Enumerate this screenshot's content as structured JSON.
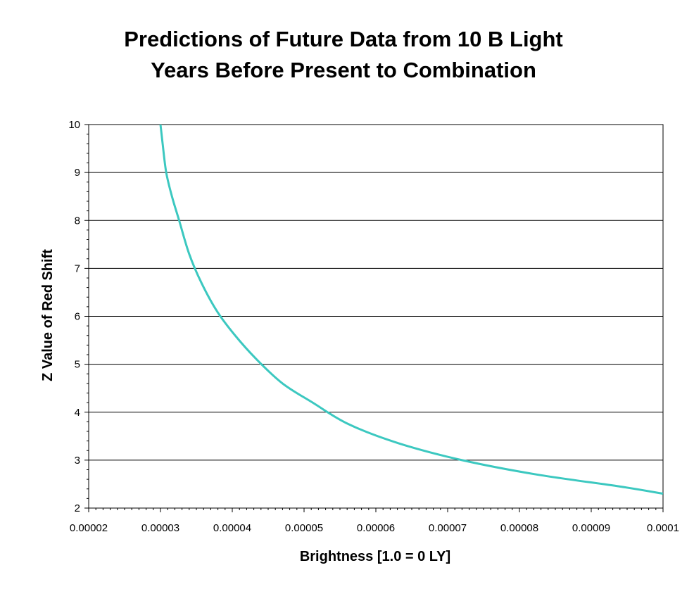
{
  "chart_data": {
    "type": "line",
    "title_lines": [
      "Predictions of Future Data from 10 B Light",
      "Years Before Present to Combination"
    ],
    "xlabel": "Brightness [1.0 = 0 LY]",
    "ylabel": "Z Value of Red Shift",
    "xlim": [
      2e-05,
      0.0001
    ],
    "ylim": [
      2,
      10
    ],
    "x_ticks": [
      "0.00002",
      "0.00003",
      "0.00004",
      "0.00005",
      "0.00006",
      "0.00007",
      "0.00008",
      "0.00009",
      "0.0001"
    ],
    "y_ticks": [
      "2",
      "3",
      "4",
      "5",
      "6",
      "7",
      "8",
      "9",
      "10"
    ],
    "grid": "horizontal",
    "legend": "none",
    "series": [
      {
        "color": "#3cc8c0",
        "x": [
          3e-05,
          3.03e-05,
          3.08e-05,
          3.16e-05,
          3.26e-05,
          3.4e-05,
          3.57e-05,
          3.79e-05,
          4.04e-05,
          4.34e-05,
          4.7e-05,
          5.12e-05,
          5.62e-05,
          6.32e-05,
          7.2e-05,
          8.24e-05,
          9.4e-05,
          0.0001
        ],
        "y": [
          10,
          9.6,
          9.0,
          8.5,
          8.0,
          7.3,
          6.7,
          6.1,
          5.6,
          5.1,
          4.6,
          4.2,
          3.75,
          3.35,
          3.0,
          2.7,
          2.45,
          2.3
        ]
      }
    ]
  }
}
